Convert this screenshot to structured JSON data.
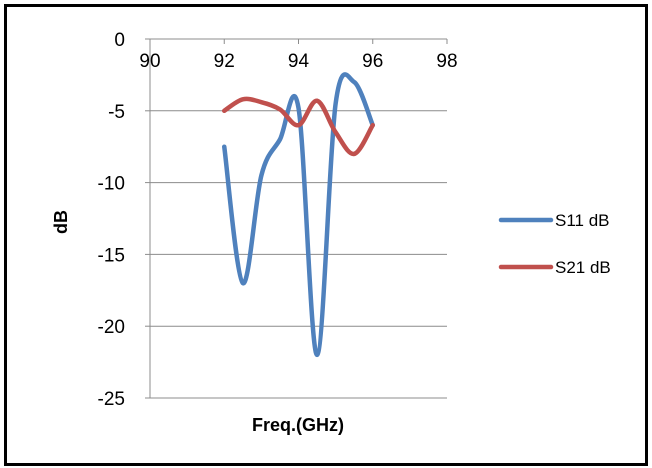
{
  "chart_data": {
    "type": "line",
    "title": "",
    "xlabel": "Freq.(GHz)",
    "ylabel": "dB",
    "xlim": [
      90,
      98
    ],
    "ylim": [
      -25,
      0
    ],
    "x_ticks": [
      90,
      92,
      94,
      96,
      98
    ],
    "y_ticks": [
      0,
      -5,
      -10,
      -15,
      -20,
      -25
    ],
    "x_tick_labels": [
      "90",
      "92",
      "94",
      "96",
      "98"
    ],
    "y_tick_labels": [
      "0",
      "-5",
      "-10",
      "-15",
      "-20",
      "-25"
    ],
    "grid": "horizontal",
    "legend_position": "right",
    "series": [
      {
        "name": "S11 dB",
        "color": "#4F81BD",
        "x": [
          92.0,
          92.5,
          93.0,
          93.5,
          94.0,
          94.5,
          95.0,
          95.5,
          96.0
        ],
        "y": [
          -7.5,
          -17.0,
          -9.5,
          -7.0,
          -4.8,
          -22.0,
          -4.5,
          -3.0,
          -6.0
        ]
      },
      {
        "name": "S21 dB",
        "color": "#C0504D",
        "x": [
          92.0,
          92.5,
          93.0,
          93.5,
          94.0,
          94.5,
          95.0,
          95.5,
          96.0
        ],
        "y": [
          -5.0,
          -4.2,
          -4.4,
          -4.9,
          -6.0,
          -4.3,
          -6.5,
          -8.0,
          -6.0
        ]
      }
    ]
  }
}
